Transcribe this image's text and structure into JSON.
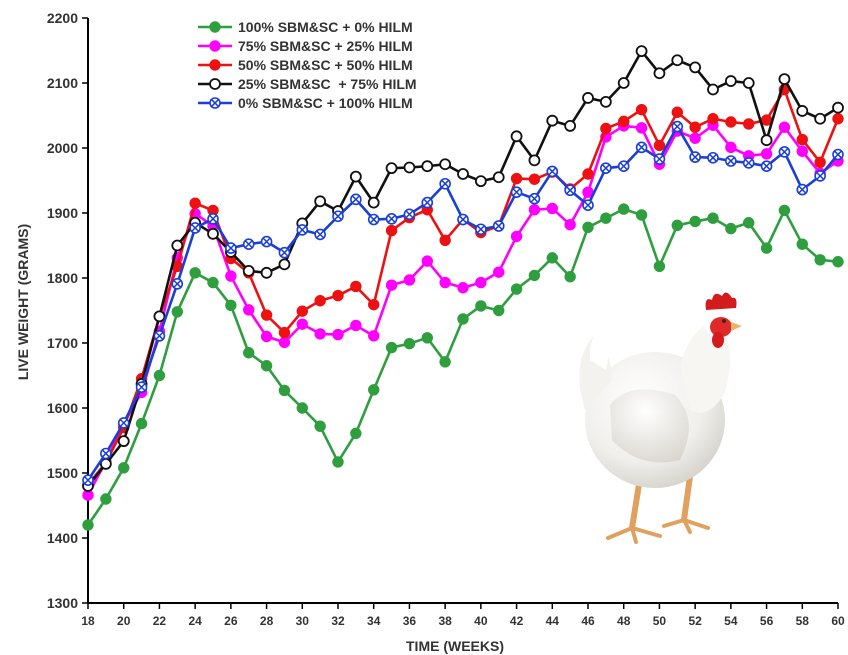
{
  "chart_data": {
    "type": "line",
    "title": "",
    "xlabel": "TIME (WEEKS)",
    "ylabel": "LIVE WEIGHT (GRAMS)",
    "xlim": [
      18,
      60
    ],
    "ylim": [
      1300,
      2200
    ],
    "x_ticks": [
      18,
      20,
      22,
      24,
      26,
      28,
      30,
      32,
      34,
      36,
      38,
      40,
      42,
      44,
      46,
      48,
      50,
      52,
      54,
      56,
      58,
      60
    ],
    "y_ticks": [
      1300,
      1400,
      1500,
      1600,
      1700,
      1800,
      1900,
      2000,
      2100,
      2200
    ],
    "grid": false,
    "legend_position": "top-left",
    "x": [
      18,
      19,
      20,
      21,
      22,
      23,
      24,
      25,
      26,
      27,
      28,
      29,
      30,
      31,
      32,
      33,
      34,
      35,
      36,
      37,
      38,
      39,
      40,
      41,
      42,
      43,
      44,
      45,
      46,
      47,
      48,
      49,
      50,
      51,
      52,
      53,
      54,
      55,
      56,
      57,
      58,
      59,
      60
    ],
    "series": [
      {
        "name": "100% SBM&SC + 0% HILM",
        "color": "#2e9e3e",
        "marker": "filled-circle",
        "values": [
          1420,
          1460,
          1508,
          1576,
          1650,
          1748,
          1808,
          1793,
          1758,
          1685,
          1665,
          1627,
          1600,
          1572,
          1517,
          1561,
          1628,
          1693,
          1699,
          1708,
          1671,
          1737,
          1757,
          1750,
          1783,
          1804,
          1831,
          1802,
          1878,
          1892,
          1906,
          1897,
          1818,
          1881,
          1887,
          1892,
          1876,
          1885,
          1846,
          1904,
          1852,
          1828,
          1825
        ]
      },
      {
        "name": "75% SBM&SC + 25% HILM",
        "color": "#ff00ff",
        "marker": "filled-circle",
        "values": [
          1466,
          1518,
          1576,
          1624,
          1718,
          1831,
          1899,
          1880,
          1803,
          1751,
          1710,
          1701,
          1729,
          1714,
          1713,
          1727,
          1711,
          1789,
          1797,
          1826,
          1793,
          1785,
          1793,
          1809,
          1864,
          1905,
          1907,
          1882,
          1932,
          2017,
          2034,
          2031,
          1975,
          2026,
          2015,
          2035,
          2001,
          1988,
          1991,
          2032,
          1995,
          1961,
          1980
        ]
      },
      {
        "name": "50% SBM&SC + 50% HILM",
        "color": "#ee1111",
        "marker": "filled-circle",
        "values": [
          1482,
          1516,
          1570,
          1645,
          1741,
          1818,
          1915,
          1904,
          1830,
          1808,
          1743,
          1716,
          1749,
          1765,
          1773,
          1787,
          1759,
          1873,
          1893,
          1905,
          1858,
          1890,
          1870,
          1880,
          1953,
          1952,
          1963,
          1937,
          1960,
          2030,
          2041,
          2059,
          2004,
          2055,
          2032,
          2045,
          2040,
          2037,
          2043,
          2090,
          2013,
          1978,
          2045
        ]
      },
      {
        "name": "25% SBM&SC  + 75% HILM",
        "color": "#111111",
        "marker": "open-circle",
        "values": [
          1480,
          1514,
          1549,
          1637,
          1741,
          1850,
          1885,
          1868,
          1840,
          1811,
          1808,
          1821,
          1884,
          1918,
          1903,
          1956,
          1916,
          1969,
          1970,
          1972,
          1975,
          1960,
          1949,
          1955,
          2018,
          1981,
          2042,
          2034,
          2077,
          2071,
          2100,
          2149,
          2115,
          2135,
          2124,
          2090,
          2103,
          2100,
          2012,
          2106,
          2057,
          2045,
          2062
        ]
      },
      {
        "name": "0% SBM&SC + 100% HILM",
        "color": "#1a3fd6",
        "marker": "cross-circle",
        "values": [
          1489,
          1530,
          1577,
          1632,
          1711,
          1791,
          1877,
          1891,
          1846,
          1852,
          1856,
          1839,
          1874,
          1867,
          1895,
          1921,
          1890,
          1891,
          1898,
          1916,
          1945,
          1890,
          1875,
          1880,
          1932,
          1922,
          1964,
          1935,
          1912,
          1969,
          1972,
          2001,
          1983,
          2033,
          1986,
          1985,
          1980,
          1977,
          1972,
          1994,
          1936,
          1957,
          1990
        ]
      }
    ],
    "image_icon": "white-chicken"
  }
}
